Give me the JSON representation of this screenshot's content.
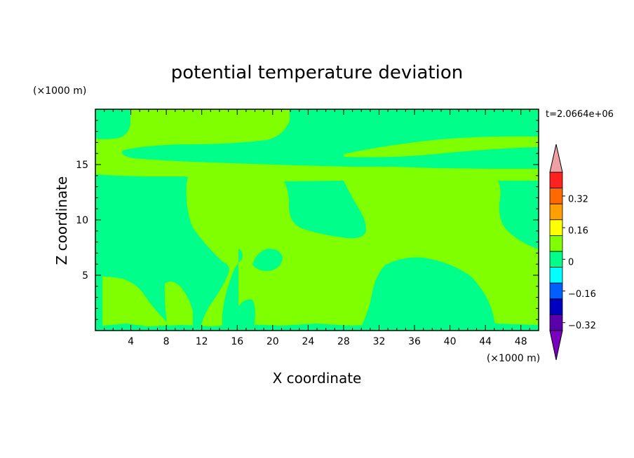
{
  "chart_data": {
    "type": "heatmap",
    "title": "potential temperature deviation",
    "time_label": "t=2.0664e+06",
    "xlabel": "X coordinate",
    "ylabel": "Z coordinate",
    "x_unit": "(×1000 m)",
    "y_unit": "(×1000 m)",
    "xlim": [
      0,
      50
    ],
    "ylim": [
      0,
      20
    ],
    "x_ticks": [
      4,
      8,
      12,
      16,
      20,
      24,
      28,
      32,
      36,
      40,
      44,
      48
    ],
    "y_ticks": [
      5,
      10,
      15
    ],
    "colorbar": {
      "labels": [
        "0.32",
        "0.16",
        "0",
        "-0.16",
        "-0.32"
      ],
      "label_text": [
        "0.32",
        "0.16",
        "0",
        "−0.16",
        "−0.32"
      ],
      "level_colors_top_to_bottom": [
        "#f0a0a0",
        "#ff2020",
        "#ff6a00",
        "#ffa000",
        "#ffff00",
        "#80ff00",
        "#00ff8a",
        "#00ffff",
        "#0060ff",
        "#0000c0",
        "#5a00aa",
        "#7a00c0"
      ]
    },
    "fill_colors": {
      "positive_small": "#80ff00",
      "negative_small": "#00ff8a"
    }
  }
}
